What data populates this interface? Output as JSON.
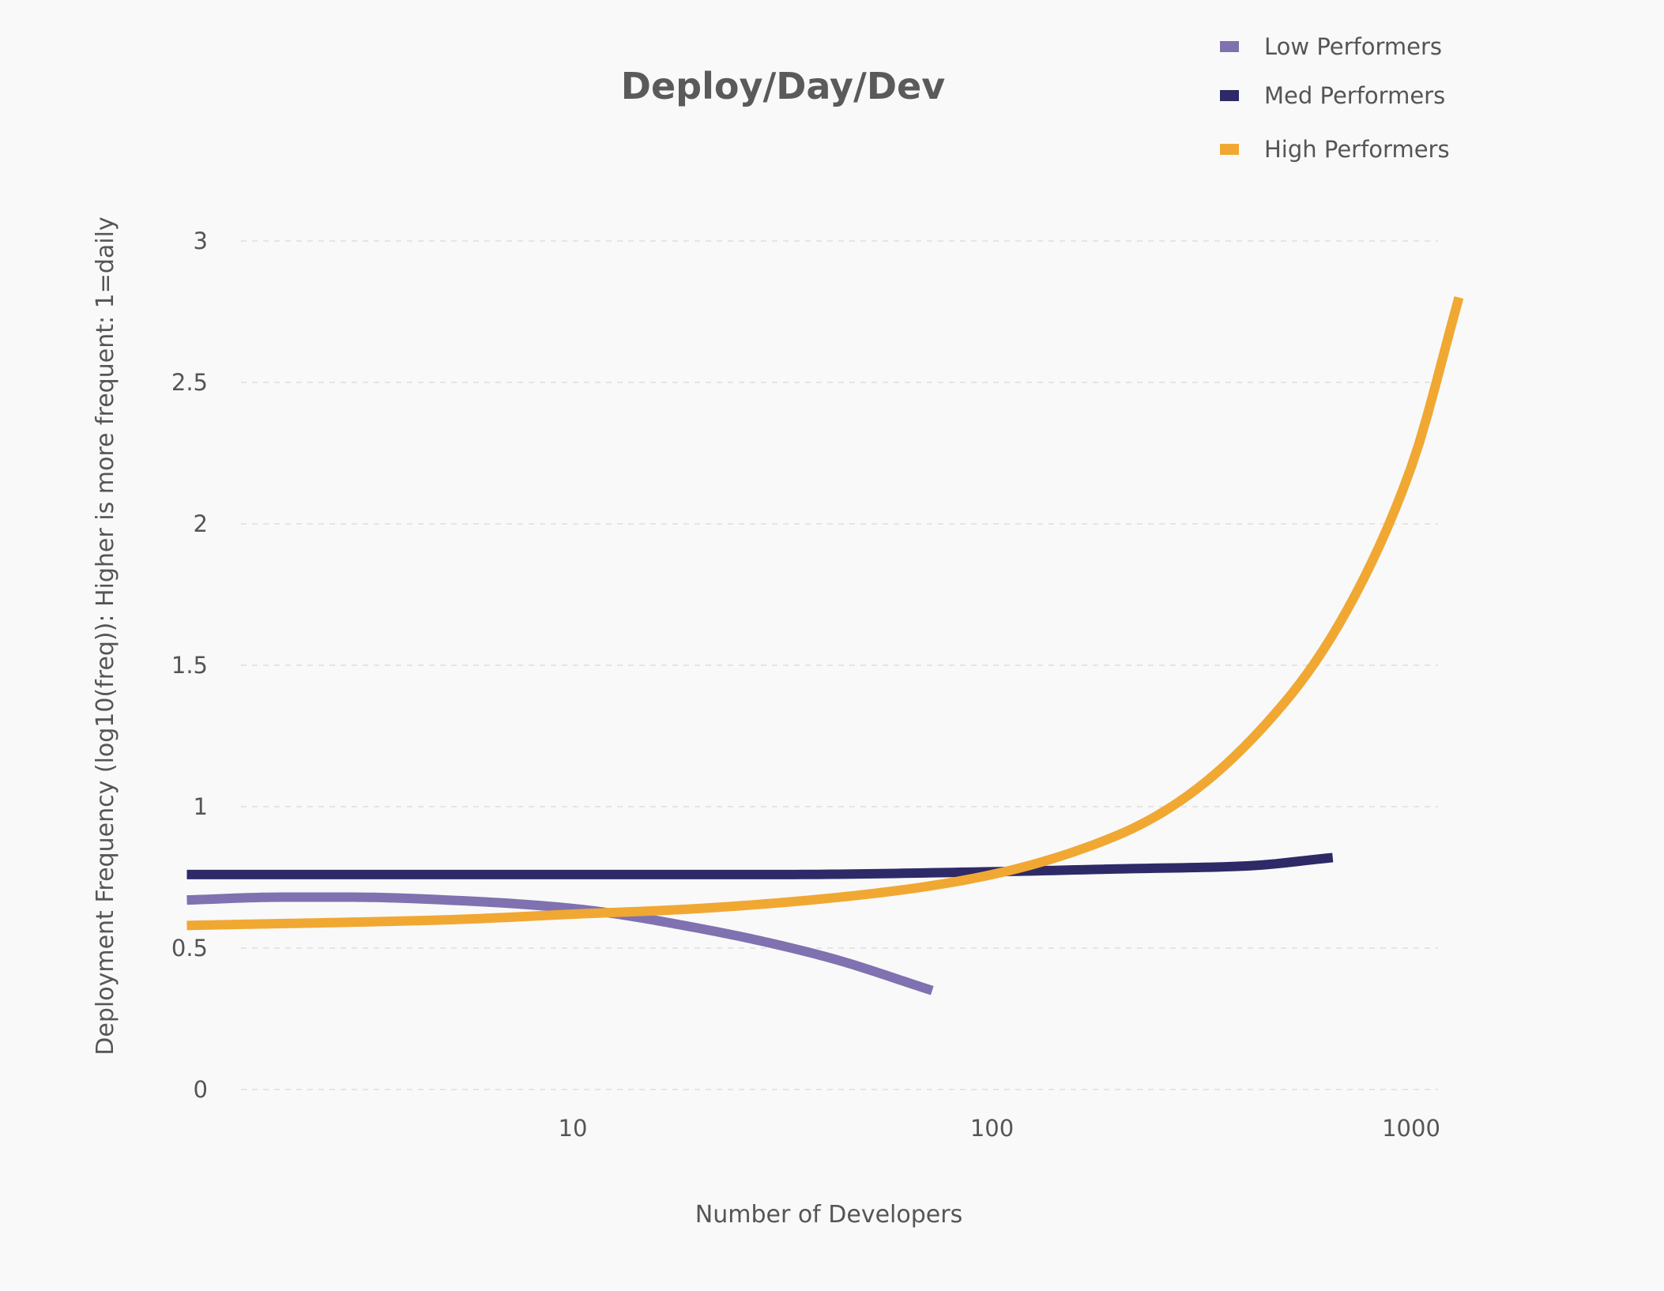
{
  "chart_data": {
    "type": "line",
    "title": "Deploy/Day/Dev",
    "xlabel": "Number of Developers",
    "ylabel": "Deployment Frequency  (log10(freq)): Higher is more frequent: 1=daily",
    "x_scale": "log",
    "xlim": [
      1.2,
      1500
    ],
    "ylim": [
      0,
      3
    ],
    "x_ticks": [
      10,
      100,
      1000
    ],
    "x_tick_labels": [
      "10",
      "100",
      "1000"
    ],
    "y_ticks": [
      0,
      0.5,
      1,
      1.5,
      2,
      2.5,
      3
    ],
    "y_tick_labels": [
      "0",
      "0.5",
      "1",
      "1.5",
      "2",
      "2.5",
      "3"
    ],
    "grid": "horizontal dashed",
    "legend_position": "top-right",
    "series": [
      {
        "name": "Low Performers",
        "color": "#8071b0",
        "x": [
          1.2,
          2,
          3,
          5,
          10,
          20,
          40,
          72
        ],
        "y": [
          0.67,
          0.68,
          0.68,
          0.67,
          0.64,
          0.57,
          0.47,
          0.35
        ]
      },
      {
        "name": "Med Performers",
        "color": "#2e2a68",
        "x": [
          1.2,
          5,
          10,
          30,
          100,
          200,
          400,
          650
        ],
        "y": [
          0.76,
          0.76,
          0.76,
          0.76,
          0.77,
          0.78,
          0.79,
          0.82
        ]
      },
      {
        "name": "High Performers",
        "color": "#f0a833",
        "x": [
          1.2,
          5,
          10,
          20,
          50,
          100,
          200,
          300,
          500,
          700,
          1000,
          1300
        ],
        "y": [
          0.58,
          0.6,
          0.62,
          0.64,
          0.69,
          0.76,
          0.9,
          1.05,
          1.37,
          1.69,
          2.2,
          2.8
        ]
      }
    ]
  }
}
